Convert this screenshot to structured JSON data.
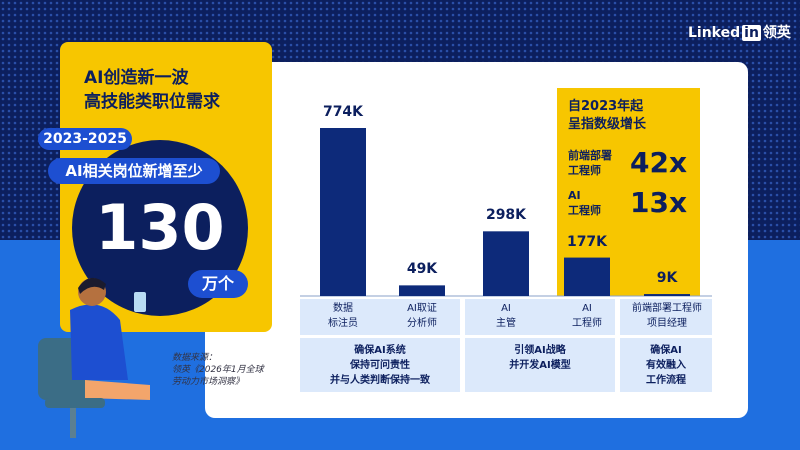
{
  "logo": {
    "brand": "Linked",
    "mark": "in",
    "local": "领英"
  },
  "left_panel": {
    "title": "AI创造新一波\n高技能类职位需求",
    "period": "2023-2025",
    "subtitle": "AI相关岗位新增至少",
    "number": "130",
    "unit": "万个"
  },
  "source": "数据来源：\n领英《2026年1月全球\n劳动力市场洞察》",
  "highlight": {
    "title": "自2023年起\n呈指数级增长",
    "rows": [
      {
        "role": "前端部署\n工程师",
        "growth": "42x"
      },
      {
        "role": "AI\n工程师",
        "growth": "13x"
      }
    ]
  },
  "chart_data": {
    "type": "bar",
    "color": "#0d2a7a",
    "categories": [
      "数据\n标注员",
      "AI取证\n分析师",
      "AI\n主管",
      "AI\n工程师",
      "前端部署工程师\n项目经理"
    ],
    "values": [
      774000,
      49000,
      298000,
      177000,
      9000
    ],
    "value_labels": [
      "774K",
      "49K",
      "298K",
      "177K",
      "9K"
    ],
    "groups": [
      "确保AI系统\n保持可问责性\n并与人类判断保持一致",
      "引领AI战略\n并开发AI模型",
      "确保AI\n有效融入\n工作流程"
    ]
  }
}
